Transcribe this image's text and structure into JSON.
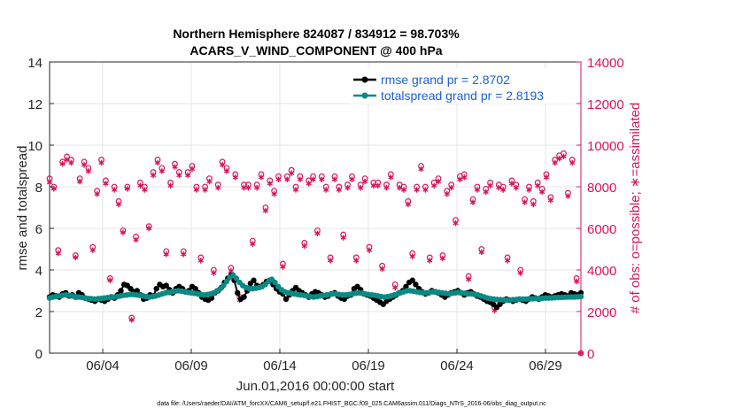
{
  "chart_data": {
    "type": "line",
    "title_line1": "Northern Hemisphere 824087 / 834912 = 98.703%",
    "title_line2": "ACARS_V_WIND_COMPONENT @ 400 hPa",
    "xlabel": "Jun.01,2016 00:00:00 start",
    "ylabel_left": "rmse and totalspread",
    "ylabel_right": "# of obs: o=possible; ∗=assimilated",
    "footer": "data file: /Users/raeder/DAI/ATM_forcXX/CAM6_setup/f.e21.FHIST_BGC.f09_025.CAM6assim.011/Diags_NTrS_2016-06/obs_diag_output.nc",
    "x_range_days": [
      1.0,
      31.0
    ],
    "ylim_left": [
      0,
      14
    ],
    "ylim_right": [
      0,
      14000
    ],
    "xticks": [
      {
        "day": 4,
        "label": "06/04"
      },
      {
        "day": 9,
        "label": "06/09"
      },
      {
        "day": 14,
        "label": "06/14"
      },
      {
        "day": 19,
        "label": "06/19"
      },
      {
        "day": 24,
        "label": "06/24"
      },
      {
        "day": 29,
        "label": "06/29"
      }
    ],
    "yticks_left": [
      "0",
      "2",
      "4",
      "6",
      "8",
      "10",
      "12",
      "14"
    ],
    "yticks_right": [
      "0",
      "2000",
      "4000",
      "6000",
      "8000",
      "10000",
      "12000",
      "14000"
    ],
    "grid": true,
    "legend_position": "top-right",
    "series": [
      {
        "name": "rmse grand pr = 2.8702",
        "color": "#000000",
        "marker": "circle",
        "values": [
          2.7,
          2.8,
          2.75,
          2.7,
          2.85,
          2.9,
          2.75,
          2.8,
          2.7,
          2.9,
          2.8,
          2.65,
          2.6,
          2.55,
          2.5,
          2.6,
          2.55,
          2.5,
          2.6,
          2.7,
          2.65,
          2.8,
          3.0,
          3.3,
          3.25,
          3.1,
          2.95,
          3.0,
          2.8,
          2.6,
          2.65,
          2.8,
          2.75,
          3.1,
          3.3,
          3.2,
          3.25,
          3.05,
          2.9,
          3.1,
          3.2,
          3.1,
          2.95,
          3.0,
          3.2,
          3.1,
          2.9,
          2.7,
          2.6,
          2.55,
          2.65,
          2.9,
          3.0,
          3.15,
          3.4,
          3.6,
          3.75,
          3.5,
          2.9,
          2.6,
          2.7,
          3.0,
          3.35,
          3.5,
          3.25,
          3.2,
          3.3,
          3.45,
          3.5,
          3.3,
          3.1,
          2.95,
          2.85,
          2.6,
          2.8,
          3.0,
          3.15,
          3.0,
          2.9,
          2.8,
          2.7,
          2.85,
          2.95,
          2.9,
          2.8,
          2.7,
          2.75,
          2.85,
          2.9,
          2.75,
          2.65,
          2.6,
          2.75,
          2.8,
          3.1,
          3.2,
          3.05,
          2.85,
          2.8,
          2.75,
          2.65,
          2.55,
          2.45,
          2.35,
          2.5,
          2.6,
          2.7,
          2.8,
          2.9,
          3.0,
          3.2,
          3.4,
          3.5,
          3.3,
          3.1,
          2.95,
          2.85,
          2.9,
          3.0,
          2.95,
          2.9,
          2.8,
          2.7,
          2.8,
          2.9,
          2.95,
          3.0,
          2.9,
          2.8,
          2.9,
          2.95,
          2.85,
          2.75,
          2.7,
          2.6,
          2.5,
          2.45,
          2.35,
          2.2,
          2.35,
          2.5,
          2.6,
          2.55,
          2.5,
          2.55,
          2.6,
          2.55,
          2.5,
          2.6,
          2.7,
          2.65,
          2.6,
          2.7,
          2.8,
          2.75,
          2.7,
          2.75,
          2.8,
          2.85,
          2.8,
          2.75,
          2.9,
          2.85,
          2.8,
          2.9
        ]
      },
      {
        "name": "totalspread grand pr = 2.8193",
        "color": "#0b8a85",
        "marker": "circle",
        "values": [
          2.65,
          2.7,
          2.72,
          2.75,
          2.78,
          2.8,
          2.78,
          2.75,
          2.72,
          2.7,
          2.68,
          2.65,
          2.63,
          2.62,
          2.6,
          2.62,
          2.63,
          2.65,
          2.67,
          2.68,
          2.7,
          2.72,
          2.75,
          2.78,
          2.8,
          2.82,
          2.82,
          2.8,
          2.78,
          2.75,
          2.72,
          2.7,
          2.72,
          2.75,
          2.8,
          2.85,
          2.9,
          2.92,
          2.95,
          2.98,
          3.0,
          2.98,
          2.95,
          2.92,
          2.9,
          2.88,
          2.85,
          2.82,
          2.8,
          2.82,
          2.85,
          2.9,
          3.0,
          3.1,
          3.25,
          3.45,
          3.65,
          3.75,
          3.6,
          3.4,
          3.25,
          3.15,
          3.1,
          3.1,
          3.12,
          3.15,
          3.2,
          3.3,
          3.45,
          3.55,
          3.4,
          3.2,
          3.05,
          2.95,
          2.9,
          2.88,
          2.85,
          2.82,
          2.8,
          2.78,
          2.75,
          2.72,
          2.7,
          2.72,
          2.75,
          2.78,
          2.8,
          2.82,
          2.85,
          2.85,
          2.82,
          2.8,
          2.8,
          2.82,
          2.85,
          2.88,
          2.9,
          2.88,
          2.85,
          2.82,
          2.8,
          2.78,
          2.75,
          2.72,
          2.7,
          2.72,
          2.75,
          2.8,
          2.85,
          2.9,
          2.95,
          3.0,
          3.0,
          2.98,
          2.95,
          2.92,
          2.9,
          2.9,
          2.92,
          2.95,
          2.95,
          2.92,
          2.9,
          2.88,
          2.85,
          2.88,
          2.9,
          2.92,
          2.9,
          2.88,
          2.85,
          2.85,
          2.82,
          2.8,
          2.75,
          2.7,
          2.65,
          2.62,
          2.6,
          2.58,
          2.57,
          2.56,
          2.55,
          2.56,
          2.57,
          2.58,
          2.6,
          2.6,
          2.6,
          2.62,
          2.62,
          2.63,
          2.63,
          2.64,
          2.65,
          2.65,
          2.66,
          2.67,
          2.68,
          2.68,
          2.69,
          2.7,
          2.7,
          2.7,
          2.71,
          2.72
        ]
      },
      {
        "name": "obs_possible",
        "color": "#d6145a",
        "marker": "o",
        "axis": "right",
        "values": [
          8400,
          8000,
          4950,
          9200,
          9450,
          9300,
          4700,
          8400,
          9200,
          8900,
          5100,
          7800,
          9300,
          8300,
          3600,
          8000,
          7300,
          5900,
          8000,
          1700,
          5600,
          8200,
          8000,
          6100,
          8700,
          9300,
          8900,
          4900,
          8200,
          9100,
          8700,
          4900,
          8700,
          9000,
          8000,
          4600,
          8000,
          8400,
          4000,
          8100,
          9200,
          8900,
          4100,
          8600,
          2700,
          8100,
          8100,
          5400,
          8100,
          8600,
          7000,
          8300,
          7800,
          8500,
          4300,
          8500,
          8800,
          8000,
          8500,
          5300,
          8300,
          8500,
          5900,
          8500,
          8000,
          4600,
          8500,
          8000,
          5700,
          8100,
          8500,
          4600,
          8100,
          8400,
          5100,
          8200,
          8200,
          4200,
          8100,
          8600,
          3300,
          8100,
          8000,
          7300,
          4800,
          8000,
          9000,
          8000,
          4600,
          8200,
          8400,
          4700,
          7800,
          8100,
          6400,
          8500,
          8600,
          3700,
          7400,
          8000,
          5000,
          7900,
          8200,
          2200,
          8100,
          8000,
          4600,
          8300,
          8100,
          4000,
          7400,
          8000,
          7300,
          8200,
          7900,
          8600,
          7500,
          9300,
          9500,
          9600,
          7700,
          9300,
          3600,
          0
        ]
      },
      {
        "name": "obs_assimilated",
        "color": "#d6145a",
        "marker": "star",
        "axis": "right",
        "values": [
          8200,
          7900,
          4800,
          9100,
          9300,
          9150,
          4600,
          8250,
          9050,
          8750,
          4950,
          7650,
          9150,
          8150,
          3500,
          7850,
          7150,
          5800,
          7900,
          1600,
          5450,
          8050,
          7850,
          6000,
          8550,
          9150,
          8750,
          4750,
          8050,
          8950,
          8550,
          4750,
          8550,
          8850,
          7850,
          4450,
          7850,
          8250,
          3850,
          7950,
          9050,
          8750,
          3950,
          8450,
          2550,
          7950,
          7950,
          5250,
          7950,
          8450,
          6850,
          8150,
          7650,
          8350,
          4150,
          8350,
          8650,
          7850,
          8350,
          5150,
          8150,
          8350,
          5750,
          8350,
          7850,
          4450,
          8350,
          7850,
          5550,
          7950,
          8350,
          4450,
          7950,
          8250,
          4950,
          8050,
          8050,
          4050,
          7950,
          8450,
          3150,
          7950,
          7850,
          7150,
          4650,
          7850,
          8850,
          7850,
          4450,
          8050,
          8250,
          4550,
          7650,
          7950,
          6250,
          8350,
          8450,
          3550,
          7250,
          7850,
          4850,
          7750,
          8050,
          2050,
          7950,
          7850,
          4450,
          8150,
          7950,
          3850,
          7250,
          7850,
          7150,
          8050,
          7750,
          8450,
          7350,
          9150,
          9350,
          9450,
          7550,
          9150,
          3450,
          0
        ]
      }
    ]
  }
}
